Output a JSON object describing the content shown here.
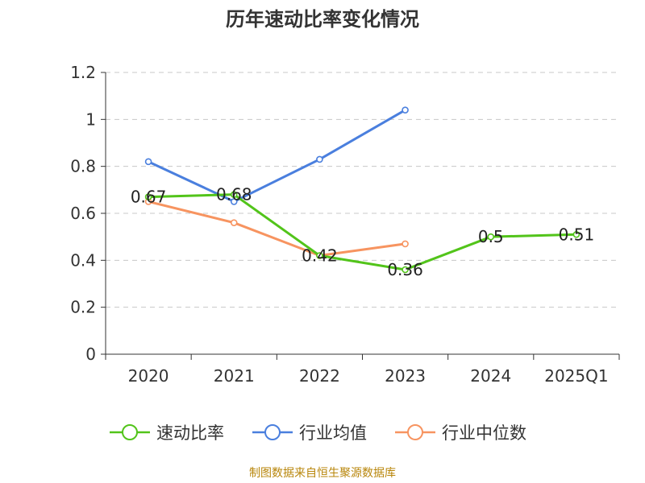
{
  "chart_data": {
    "type": "line",
    "title": "历年速动比率变化情况",
    "categories": [
      "2020",
      "2021",
      "2022",
      "2023",
      "2024",
      "2025Q1"
    ],
    "ylim": [
      0,
      1.2
    ],
    "yticks": [
      "0",
      "0.2",
      "0.4",
      "0.6",
      "0.8",
      "1",
      "1.2"
    ],
    "grid": true,
    "legend_position": "bottom",
    "series": [
      {
        "name": "速动比率",
        "color": "#52c41a",
        "values": [
          0.67,
          0.68,
          0.42,
          0.36,
          0.5,
          0.51
        ],
        "labels": [
          "0.67",
          "0.68",
          "0.42",
          "0.36",
          "0.5",
          "0.51"
        ]
      },
      {
        "name": "行业均值",
        "color": "#4a7fde",
        "values": [
          0.82,
          0.65,
          0.83,
          1.04,
          null,
          null
        ]
      },
      {
        "name": "行业中位数",
        "color": "#f79460",
        "values": [
          0.65,
          0.56,
          0.42,
          0.47,
          null,
          null
        ]
      }
    ]
  },
  "source_text": "制图数据来自恒生聚源数据库"
}
